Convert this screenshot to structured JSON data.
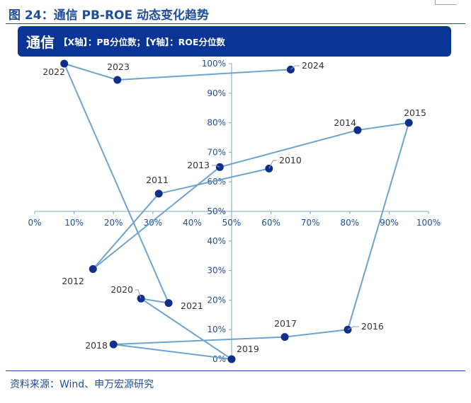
{
  "figure_title": "图 24：通信 PB-ROE 动态变化趋势",
  "banner": {
    "main": "通信",
    "sub": "【X轴】：PB分位数；【Y轴】：ROE分位数"
  },
  "source": "资料来源：Wind、申万宏源研究",
  "colors": {
    "accent": "#1f4e9a",
    "banner": "#0a3596",
    "line": "#6fa3cf",
    "marker": "#0e2f8a"
  },
  "chart_data": {
    "type": "line",
    "title": "通信",
    "xlabel": "PB分位数",
    "ylabel": "ROE分位数",
    "xlim": [
      0,
      100
    ],
    "ylim": [
      0,
      100
    ],
    "x_ticks": [
      "0%",
      "10%",
      "20%",
      "30%",
      "40%",
      "50%",
      "60%",
      "70%",
      "80%",
      "90%",
      "100%"
    ],
    "y_ticks": [
      "0%",
      "10%",
      "20%",
      "30%",
      "40%",
      "50%",
      "60%",
      "70%",
      "80%",
      "90%",
      "100%"
    ],
    "series": [
      {
        "name": "通信",
        "points": [
          {
            "label": "2010",
            "x": 59.5,
            "y": 64.5
          },
          {
            "label": "2011",
            "x": 31.5,
            "y": 56.0
          },
          {
            "label": "2012",
            "x": 14.8,
            "y": 30.5
          },
          {
            "label": "2013",
            "x": 47.0,
            "y": 65.0
          },
          {
            "label": "2014",
            "x": 82.0,
            "y": 77.5
          },
          {
            "label": "2015",
            "x": 95.0,
            "y": 80.0
          },
          {
            "label": "2016",
            "x": 79.5,
            "y": 10.0
          },
          {
            "label": "2017",
            "x": 63.5,
            "y": 7.5
          },
          {
            "label": "2018",
            "x": 20.0,
            "y": 5.0
          },
          {
            "label": "2019",
            "x": 50.0,
            "y": 0.0
          },
          {
            "label": "2020",
            "x": 27.0,
            "y": 20.5
          },
          {
            "label": "2021",
            "x": 34.0,
            "y": 19.0
          },
          {
            "label": "2022",
            "x": 7.5,
            "y": 100.0
          },
          {
            "label": "2023",
            "x": 21.0,
            "y": 94.5
          },
          {
            "label": "2024",
            "x": 65.0,
            "y": 98.0
          }
        ]
      }
    ]
  }
}
